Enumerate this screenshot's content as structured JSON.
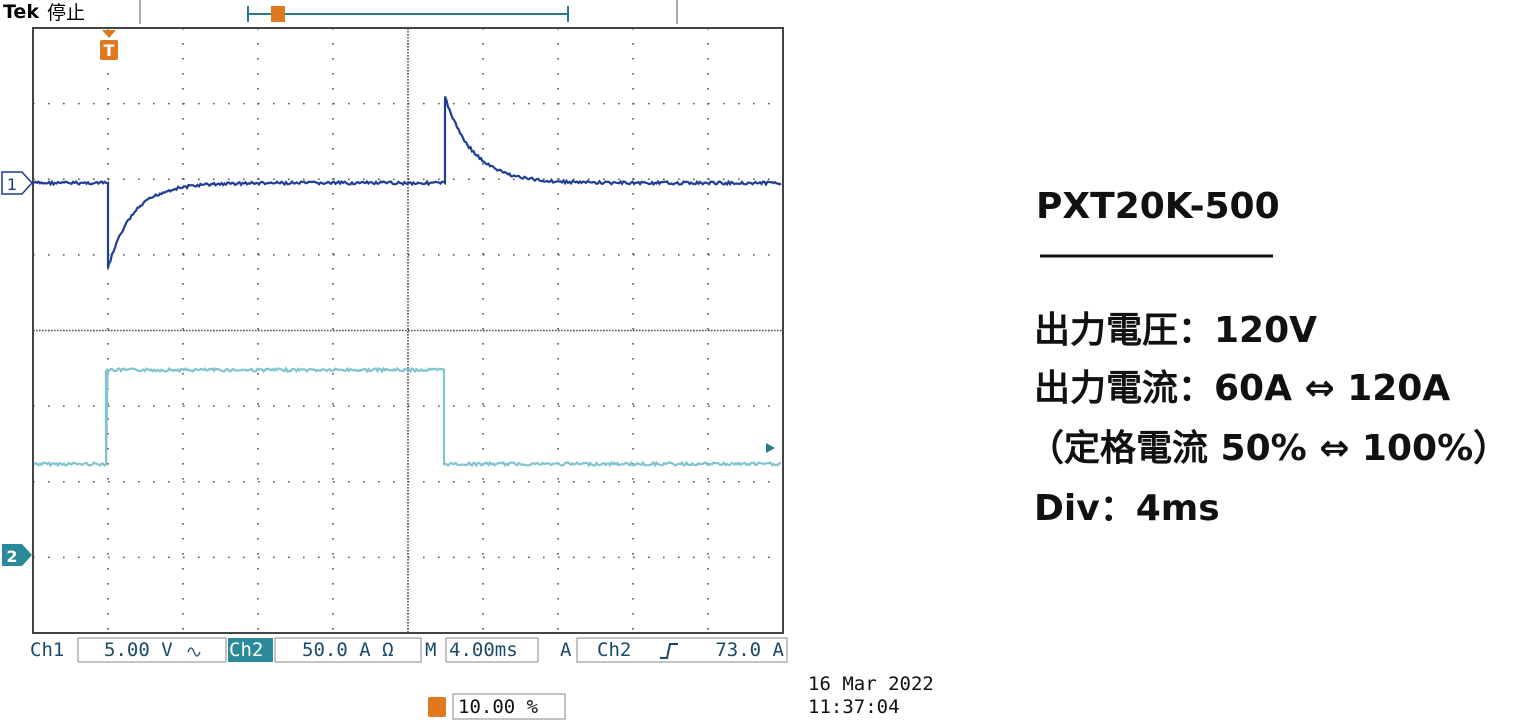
{
  "scope": {
    "brand": "Tek",
    "status": "停止",
    "trigger_marker": "T",
    "ch1_marker": "1",
    "ch2_marker": "2",
    "readouts": {
      "ch1_label": "Ch1",
      "ch1_scale": "5.00 V",
      "ch2_label": "Ch2",
      "ch2_scale": "50.0 A Ω",
      "time_label": "M",
      "time_scale": "4.00ms",
      "trigger_label": "A",
      "trigger_source": "Ch2",
      "trigger_level": "73.0 A",
      "trigger_position": "10.00 %",
      "date": "16 Mar  2022",
      "time": "11:37:04"
    }
  },
  "notes": {
    "model": "PXT20K-500",
    "lines": [
      "出力電圧：120V",
      "出力電流：60A ⇔ 120A",
      "（定格電流 50% ⇔ 100%）",
      "Div：4ms"
    ]
  }
}
